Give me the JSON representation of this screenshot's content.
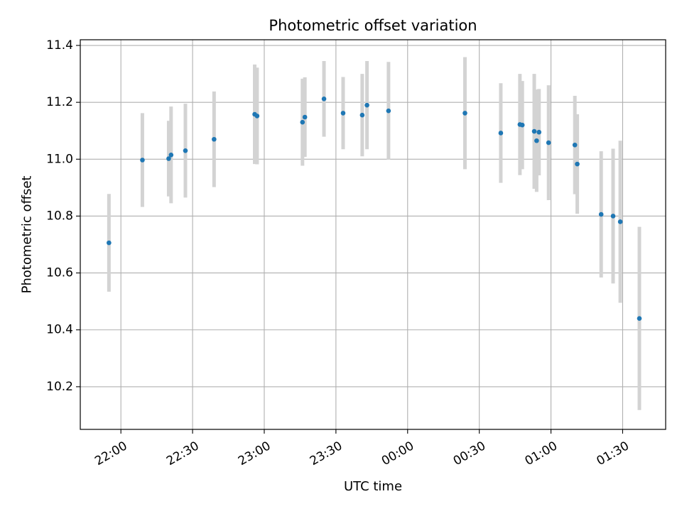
{
  "chart_data": {
    "type": "scatter",
    "title": "Photometric offset variation",
    "xlabel": "UTC time",
    "ylabel": "Photometric offset",
    "x_tick_labels": [
      "22:00",
      "22:30",
      "23:00",
      "23:30",
      "00:00",
      "00:30",
      "01:00",
      "01:30"
    ],
    "y_tick_labels": [
      "10.2",
      "10.4",
      "10.6",
      "10.8",
      "11.0",
      "11.2",
      "11.4"
    ],
    "x_ticks_minutes_after_midnight": [
      -120,
      -90,
      -60,
      -30,
      0,
      30,
      60,
      90
    ],
    "y_ticks": [
      10.2,
      10.4,
      10.6,
      10.8,
      11.0,
      11.2,
      11.4
    ],
    "xlim_minutes_after_midnight": [
      -137,
      108
    ],
    "ylim": [
      10.05,
      11.42
    ],
    "grid": true,
    "point_color": "#1f77b4",
    "errorbar_color": "#d3d3d3",
    "points": [
      {
        "t": "21:55",
        "y": 10.706,
        "err": 0.172
      },
      {
        "t": "22:09",
        "y": 10.997,
        "err": 0.165
      },
      {
        "t": "22:20",
        "y": 11.002,
        "err": 0.133
      },
      {
        "t": "22:21",
        "y": 11.015,
        "err": 0.17
      },
      {
        "t": "22:27",
        "y": 11.03,
        "err": 0.165
      },
      {
        "t": "22:39",
        "y": 11.07,
        "err": 0.168
      },
      {
        "t": "22:56",
        "y": 11.158,
        "err": 0.175
      },
      {
        "t": "22:57",
        "y": 11.152,
        "err": 0.17
      },
      {
        "t": "23:16",
        "y": 11.13,
        "err": 0.153
      },
      {
        "t": "23:17",
        "y": 11.148,
        "err": 0.14
      },
      {
        "t": "23:25",
        "y": 11.212,
        "err": 0.133
      },
      {
        "t": "23:33",
        "y": 11.162,
        "err": 0.127
      },
      {
        "t": "23:41",
        "y": 11.155,
        "err": 0.145
      },
      {
        "t": "23:43",
        "y": 11.19,
        "err": 0.155
      },
      {
        "t": "23:52",
        "y": 11.17,
        "err": 0.172
      },
      {
        "t": "00:24",
        "y": 11.162,
        "err": 0.197
      },
      {
        "t": "00:39",
        "y": 11.092,
        "err": 0.175
      },
      {
        "t": "00:47",
        "y": 11.122,
        "err": 0.178
      },
      {
        "t": "00:48",
        "y": 11.12,
        "err": 0.155
      },
      {
        "t": "00:53",
        "y": 11.098,
        "err": 0.202
      },
      {
        "t": "00:54",
        "y": 11.065,
        "err": 0.18
      },
      {
        "t": "00:55",
        "y": 11.095,
        "err": 0.152
      },
      {
        "t": "00:59",
        "y": 11.058,
        "err": 0.202
      },
      {
        "t": "01:10",
        "y": 11.05,
        "err": 0.173
      },
      {
        "t": "01:11",
        "y": 10.983,
        "err": 0.175
      },
      {
        "t": "01:21",
        "y": 10.806,
        "err": 0.222
      },
      {
        "t": "01:26",
        "y": 10.8,
        "err": 0.237
      },
      {
        "t": "01:29",
        "y": 10.78,
        "err": 0.285
      },
      {
        "t": "01:37",
        "y": 10.44,
        "err": 0.322
      }
    ]
  }
}
